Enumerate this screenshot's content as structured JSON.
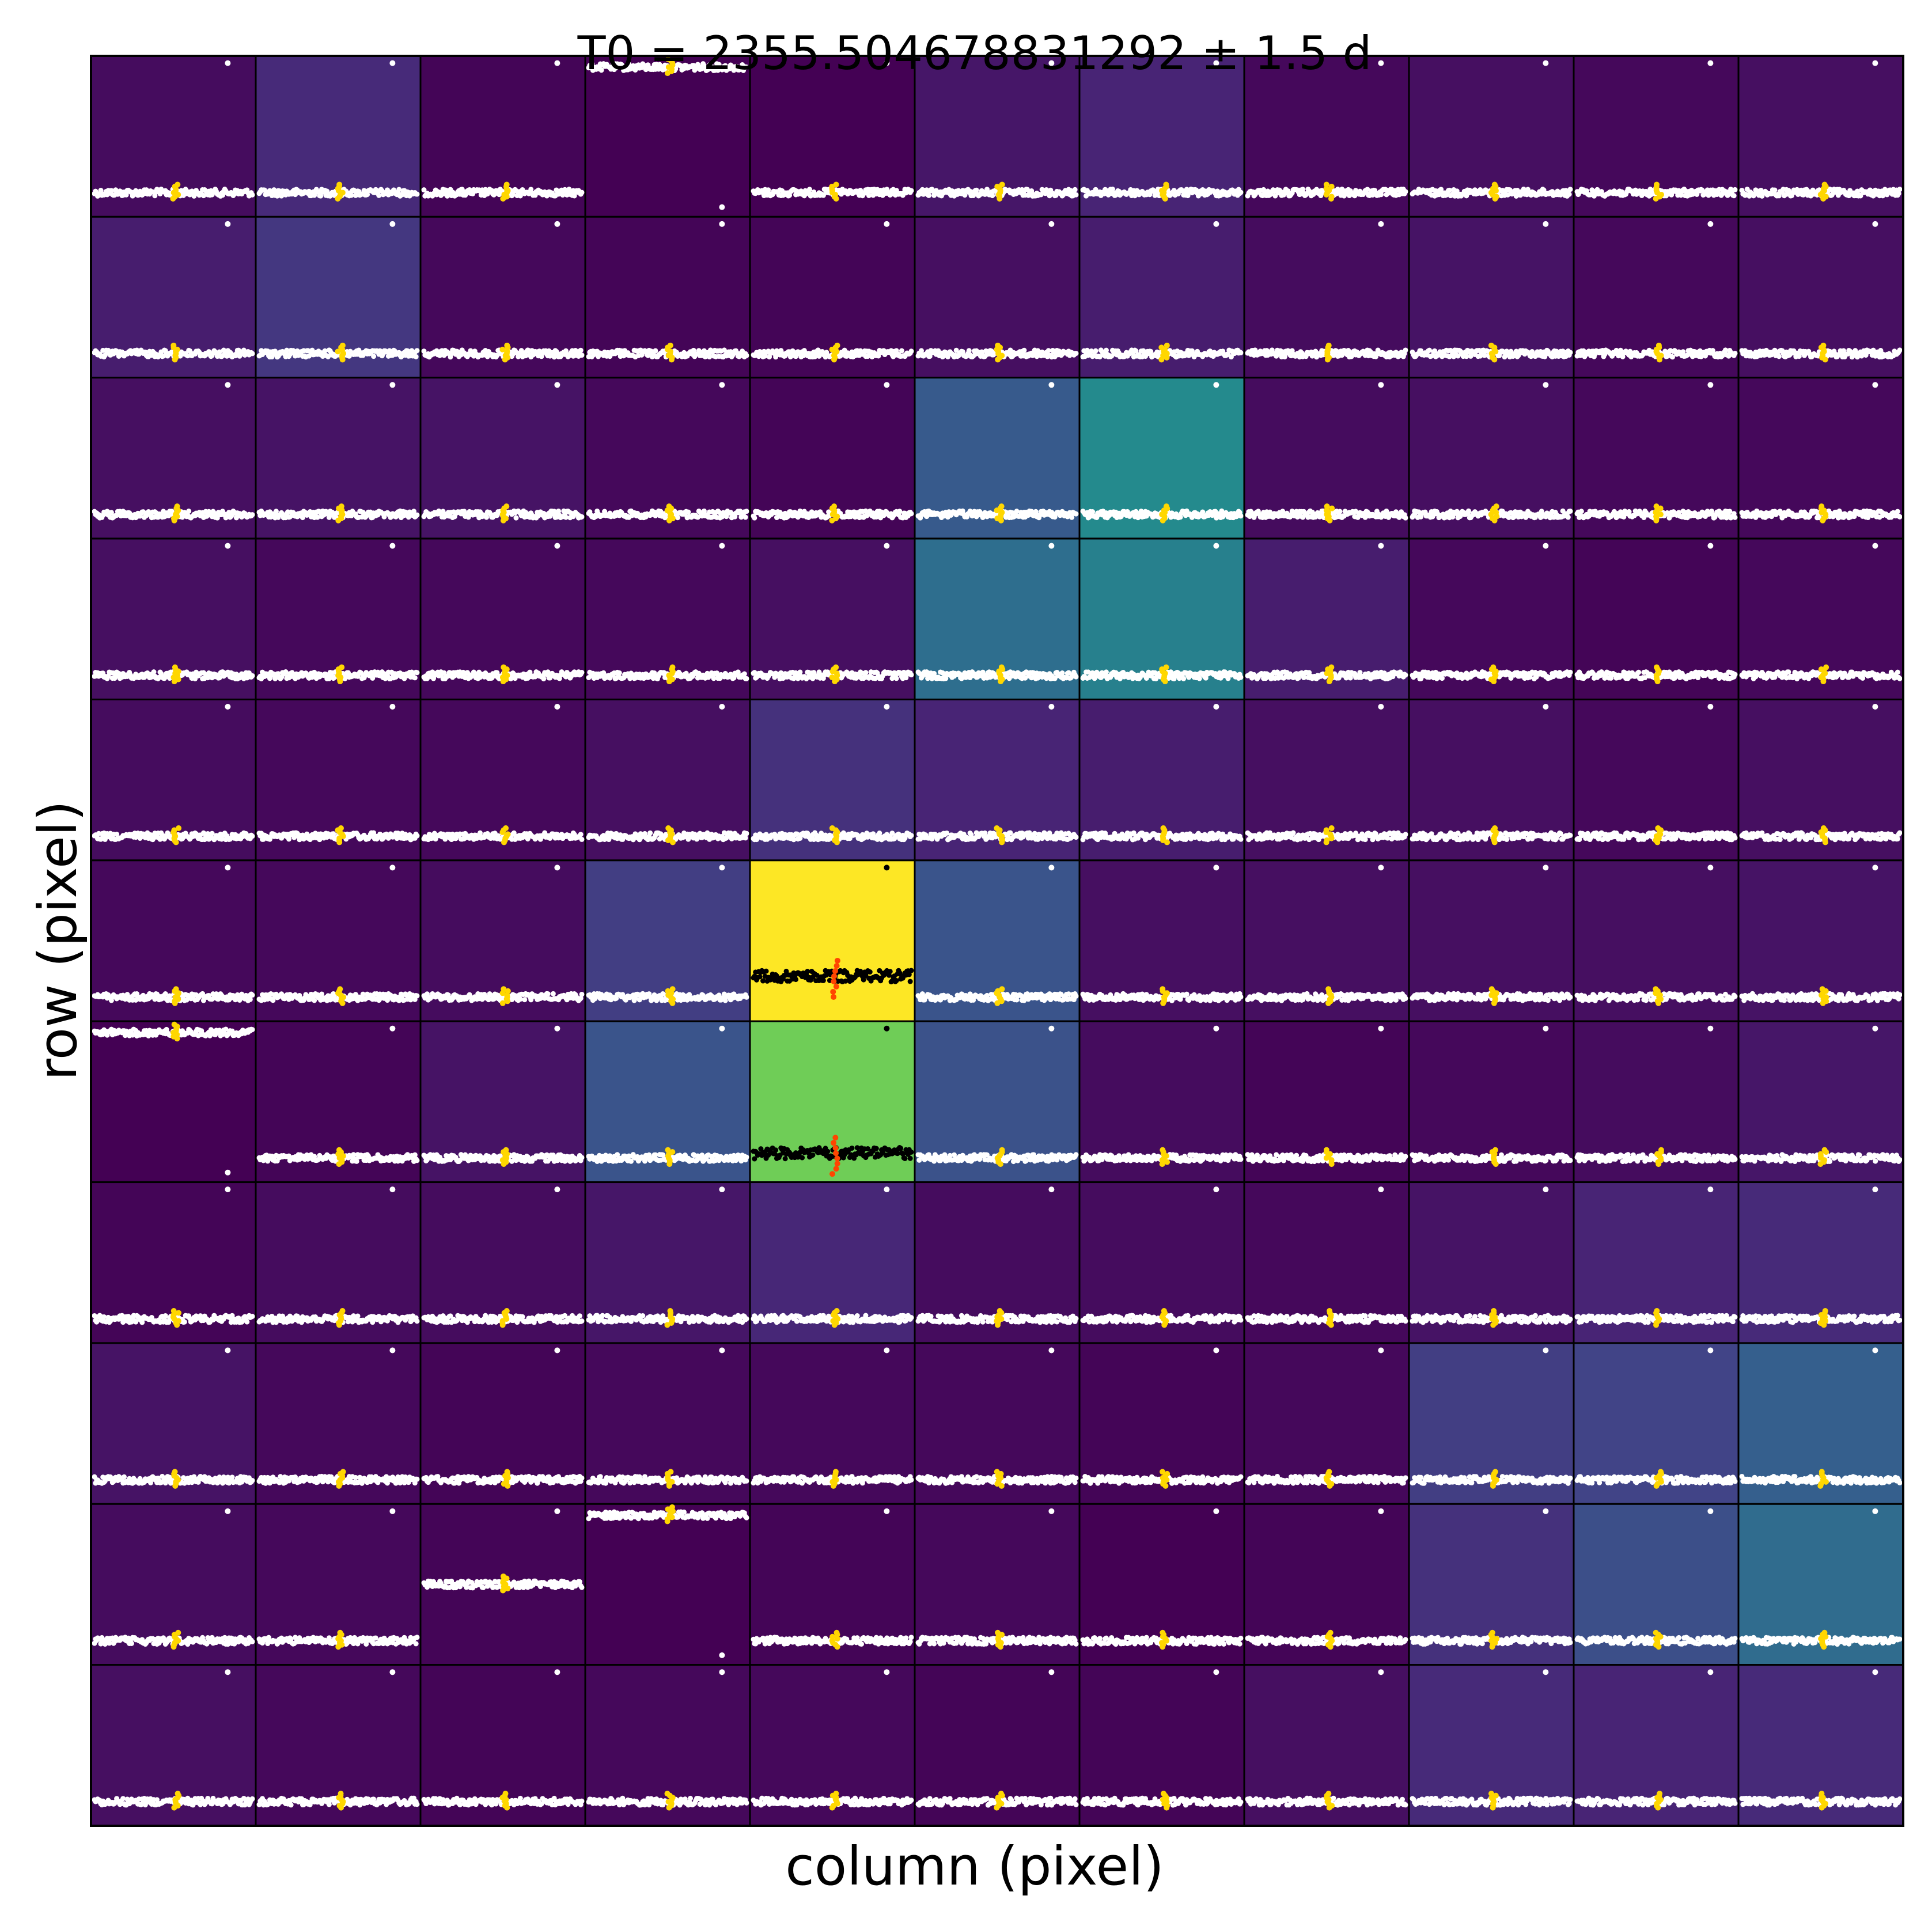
{
  "chart_data": {
    "type": "heatmap",
    "title": "T0 = 2355.504678831292 ± 1.5 d",
    "xlabel": "column (pixel)",
    "ylabel": "row (pixel)",
    "grid_shape": [
      11,
      11
    ],
    "colormap": "viridis",
    "background_level": [
      [
        0.03,
        0.12,
        0.01,
        0.0,
        0.0,
        0.06,
        0.1,
        0.02,
        0.04,
        0.02,
        0.04
      ],
      [
        0.08,
        0.16,
        0.02,
        0.01,
        0.01,
        0.04,
        0.08,
        0.03,
        0.05,
        0.02,
        0.04
      ],
      [
        0.04,
        0.05,
        0.05,
        0.02,
        0.01,
        0.28,
        0.47,
        0.03,
        0.04,
        0.02,
        0.02
      ],
      [
        0.04,
        0.02,
        0.02,
        0.02,
        0.04,
        0.36,
        0.43,
        0.08,
        0.02,
        0.01,
        0.02
      ],
      [
        0.03,
        0.02,
        0.02,
        0.04,
        0.14,
        0.1,
        0.08,
        0.04,
        0.04,
        0.02,
        0.04
      ],
      [
        0.02,
        0.02,
        0.03,
        0.18,
        1.0,
        0.26,
        0.04,
        0.04,
        0.04,
        0.04,
        0.05
      ],
      [
        0.0,
        0.01,
        0.05,
        0.26,
        0.78,
        0.25,
        0.03,
        0.01,
        0.02,
        0.03,
        0.06
      ],
      [
        0.01,
        0.03,
        0.03,
        0.06,
        0.11,
        0.03,
        0.03,
        0.02,
        0.05,
        0.1,
        0.12
      ],
      [
        0.05,
        0.02,
        0.01,
        0.02,
        0.02,
        0.02,
        0.01,
        0.02,
        0.18,
        0.2,
        0.3
      ],
      [
        0.03,
        0.02,
        0.01,
        0.0,
        0.01,
        0.02,
        0.0,
        0.01,
        0.14,
        0.24,
        0.35
      ],
      [
        0.04,
        0.02,
        0.01,
        0.02,
        0.02,
        0.01,
        0.01,
        0.04,
        0.12,
        0.1,
        0.12
      ]
    ],
    "lightcurve_level": [
      [
        0.15,
        0.15,
        0.15,
        0.93,
        0.15,
        0.15,
        0.15,
        0.15,
        0.15,
        0.15,
        0.15
      ],
      [
        0.15,
        0.15,
        0.15,
        0.15,
        0.15,
        0.15,
        0.15,
        0.15,
        0.15,
        0.15,
        0.15
      ],
      [
        0.15,
        0.15,
        0.15,
        0.15,
        0.15,
        0.15,
        0.15,
        0.15,
        0.15,
        0.15,
        0.15
      ],
      [
        0.15,
        0.15,
        0.15,
        0.15,
        0.15,
        0.15,
        0.15,
        0.15,
        0.15,
        0.15,
        0.15
      ],
      [
        0.15,
        0.15,
        0.15,
        0.15,
        0.15,
        0.15,
        0.15,
        0.15,
        0.15,
        0.15,
        0.15
      ],
      [
        0.15,
        0.15,
        0.15,
        0.15,
        0.28,
        0.15,
        0.15,
        0.15,
        0.15,
        0.15,
        0.15
      ],
      [
        0.93,
        0.15,
        0.15,
        0.15,
        0.18,
        0.15,
        0.15,
        0.15,
        0.15,
        0.15,
        0.15
      ],
      [
        0.15,
        0.15,
        0.15,
        0.15,
        0.15,
        0.15,
        0.15,
        0.15,
        0.15,
        0.15,
        0.15
      ],
      [
        0.15,
        0.15,
        0.15,
        0.15,
        0.15,
        0.15,
        0.15,
        0.15,
        0.15,
        0.15,
        0.15
      ],
      [
        0.15,
        0.15,
        0.5,
        0.93,
        0.15,
        0.15,
        0.15,
        0.15,
        0.15,
        0.15,
        0.15
      ],
      [
        0.15,
        0.15,
        0.15,
        0.15,
        0.15,
        0.15,
        0.15,
        0.15,
        0.15,
        0.15,
        0.15
      ]
    ],
    "lightcurve_color_default": "#ffffff",
    "lightcurve_color_aperture": "#000000",
    "transit_color_default": "#ffd700",
    "transit_color_aperture": "#ff4500",
    "aperture_pixels": [
      [
        5,
        4
      ],
      [
        6,
        4
      ]
    ],
    "grid": false,
    "legend": "none"
  }
}
